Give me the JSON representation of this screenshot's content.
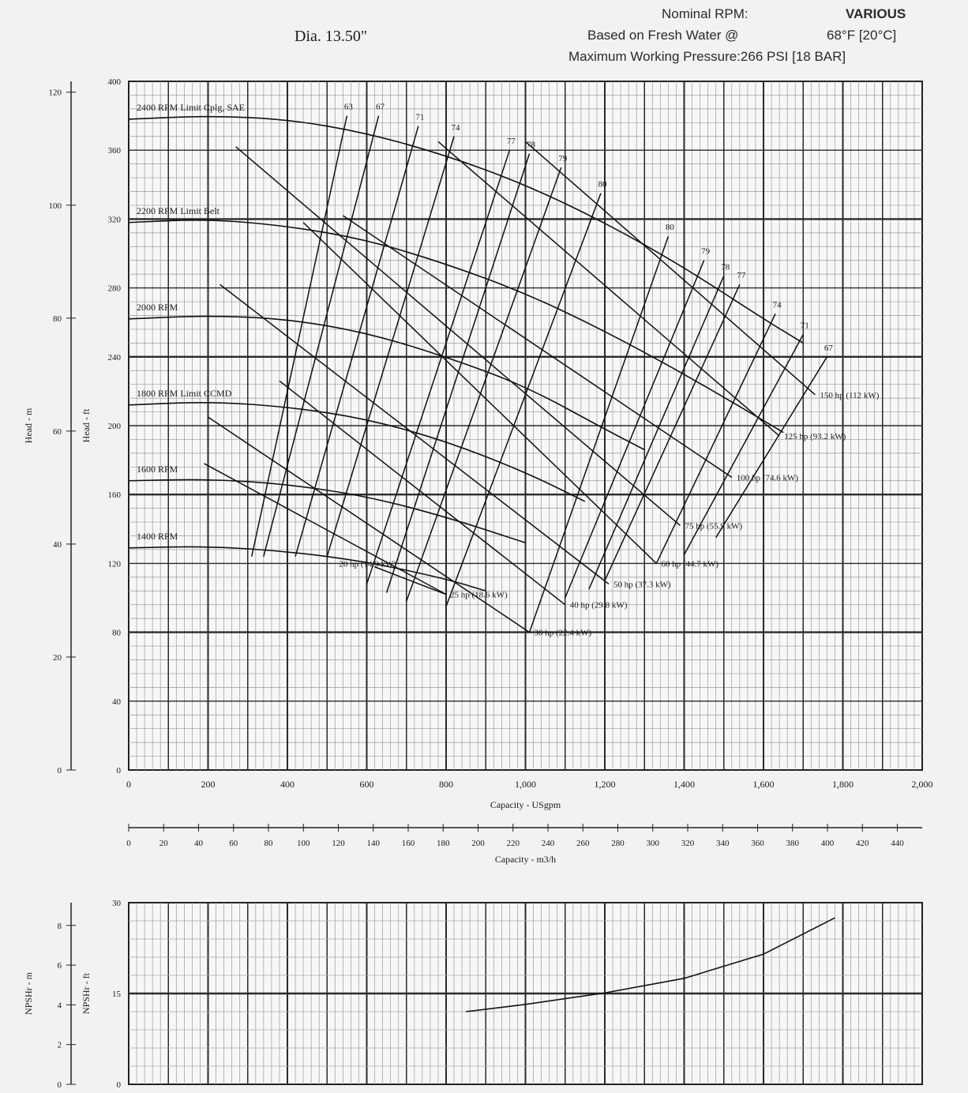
{
  "header": {
    "diameter": "Dia. 13.50\"",
    "nominal_rpm_label": "Nominal RPM:",
    "nominal_rpm_value": "VARIOUS",
    "fresh_water_label": "Based on Fresh Water @",
    "fresh_water_value": "68°F [20°C]",
    "max_pressure": "Maximum Working Pressure:266 PSI [18 BAR]"
  },
  "chart_data": [
    {
      "type": "line",
      "name": "pump-performance",
      "xlabel": "Capacity - USgpm",
      "x2label": "Capacity - m3/h",
      "ylabel": "Head - ft",
      "y2label": "Head - m",
      "xlim": [
        0,
        2000
      ],
      "ylim": [
        0,
        400
      ],
      "x_ticks": [
        "0",
        "200",
        "400",
        "600",
        "800",
        "1,000",
        "1,200",
        "1,400",
        "1,600",
        "1,800",
        "2,000"
      ],
      "x2_ticks": [
        "0",
        "20",
        "40",
        "60",
        "80",
        "100",
        "120",
        "140",
        "160",
        "180",
        "200",
        "220",
        "240",
        "260",
        "280",
        "300",
        "320",
        "340",
        "360",
        "380",
        "400",
        "420",
        "440"
      ],
      "y_ticks": [
        "0",
        "40",
        "80",
        "120",
        "160",
        "200",
        "240",
        "280",
        "320",
        "360",
        "400"
      ],
      "y2_ticks": [
        "0",
        "20",
        "40",
        "60",
        "80",
        "100",
        "120"
      ],
      "grid": true,
      "series": [
        {
          "name": "2400 RPM Limit Cplg, SAE",
          "x": [
            0,
            200,
            400,
            600,
            800,
            1000,
            1200,
            1400,
            1600,
            1700
          ],
          "y": [
            378,
            380,
            378,
            370,
            357,
            340,
            318,
            292,
            262,
            248
          ]
        },
        {
          "name": "2200 RPM Limit Belt",
          "x": [
            0,
            200,
            400,
            600,
            800,
            1000,
            1200,
            1400,
            1600,
            1650
          ],
          "y": [
            318,
            320,
            316,
            308,
            294,
            277,
            255,
            230,
            203,
            196
          ]
        },
        {
          "name": "2000 RPM",
          "x": [
            0,
            200,
            400,
            600,
            800,
            1000,
            1200,
            1300
          ],
          "y": [
            262,
            264,
            262,
            254,
            240,
            223,
            198,
            186
          ]
        },
        {
          "name": "1800 RPM Limit CCMD",
          "x": [
            0,
            200,
            400,
            600,
            800,
            1000,
            1150
          ],
          "y": [
            212,
            214,
            211,
            204,
            191,
            173,
            156
          ]
        },
        {
          "name": "1600 RPM",
          "x": [
            0,
            200,
            400,
            600,
            800,
            1000
          ],
          "y": [
            168,
            169,
            166,
            159,
            147,
            132
          ]
        },
        {
          "name": "1400 RPM",
          "x": [
            0,
            200,
            400,
            600,
            800,
            900
          ],
          "y": [
            129,
            130,
            127,
            121,
            111,
            104
          ]
        }
      ],
      "efficiency_lines": [
        {
          "label": "63",
          "x": [
            310,
            550
          ],
          "y": [
            124,
            380
          ]
        },
        {
          "label": "67",
          "x": [
            340,
            630
          ],
          "y": [
            124,
            380
          ]
        },
        {
          "label": "71",
          "x": [
            420,
            730
          ],
          "y": [
            124,
            374
          ]
        },
        {
          "label": "74",
          "x": [
            500,
            820
          ],
          "y": [
            124,
            368
          ]
        },
        {
          "label": "77",
          "x": [
            600,
            960
          ],
          "y": [
            108,
            360
          ]
        },
        {
          "label": "78",
          "x": [
            650,
            1010
          ],
          "y": [
            103,
            358
          ]
        },
        {
          "label": "79",
          "x": [
            700,
            1090
          ],
          "y": [
            98,
            350
          ]
        },
        {
          "label": "80",
          "x": [
            800,
            1190
          ],
          "y": [
            95,
            335
          ]
        },
        {
          "label": "80",
          "x": [
            1010,
            1360
          ],
          "y": [
            80,
            310
          ]
        },
        {
          "label": "79",
          "x": [
            1100,
            1450
          ],
          "y": [
            100,
            296
          ]
        },
        {
          "label": "78",
          "x": [
            1160,
            1500
          ],
          "y": [
            105,
            287
          ]
        },
        {
          "label": "77",
          "x": [
            1200,
            1540
          ],
          "y": [
            110,
            282
          ]
        },
        {
          "label": "74",
          "x": [
            1330,
            1630
          ],
          "y": [
            120,
            265
          ]
        },
        {
          "label": "71",
          "x": [
            1400,
            1700
          ],
          "y": [
            125,
            253
          ]
        },
        {
          "label": "67",
          "x": [
            1480,
            1760
          ],
          "y": [
            135,
            240
          ]
        }
      ],
      "power_lines": [
        {
          "label": "150 hp (112 kW)",
          "x": [
            1000,
            1730
          ],
          "y": [
            365,
            218
          ]
        },
        {
          "label": "125 hp (93.2 kW)",
          "x": [
            780,
            1640
          ],
          "y": [
            365,
            194
          ]
        },
        {
          "label": "100 hp (74.6 kW)",
          "x": [
            540,
            1520
          ],
          "y": [
            322,
            170
          ]
        },
        {
          "label": "75 hp (55.9 kW)",
          "x": [
            270,
            1390
          ],
          "y": [
            362,
            142
          ]
        },
        {
          "label": "60 hp (44.7 kW)",
          "x": [
            440,
            1330
          ],
          "y": [
            318,
            120
          ]
        },
        {
          "label": "50 hp (37.3 kW)",
          "x": [
            230,
            1210
          ],
          "y": [
            282,
            108
          ]
        },
        {
          "label": "40 hp (29.8 kW)",
          "x": [
            380,
            1100
          ],
          "y": [
            226,
            96
          ]
        },
        {
          "label": "30 hp (22.4 kW)",
          "x": [
            200,
            1010
          ],
          "y": [
            205,
            80
          ]
        },
        {
          "label": "25 hp (18.6 kW)",
          "x": [
            190,
            800
          ],
          "y": [
            178,
            102
          ]
        },
        {
          "label": "20 hp (14.9 kW)",
          "x": [
            620,
            800
          ],
          "y": [
            118,
            102
          ]
        }
      ],
      "labels_low": [
        {
          "text": "20 hp (14.9 kW)",
          "x": 530,
          "y": 120
        },
        {
          "text": "25 hp (18.6 kW)",
          "x": 810,
          "y": 102
        }
      ]
    },
    {
      "type": "line",
      "name": "npshr",
      "ylabel": "NPSHr - ft",
      "y2label": "NPSHr - m",
      "xlim": [
        0,
        2000
      ],
      "ylim": [
        0,
        30
      ],
      "y_ticks": [
        "0",
        "15",
        "30"
      ],
      "y2_ticks": [
        "0",
        "2",
        "4",
        "6",
        "8"
      ],
      "grid": true,
      "series": [
        {
          "x": [
            850,
            1000,
            1200,
            1400,
            1600,
            1780
          ],
          "y": [
            12,
            13.2,
            15.1,
            17.5,
            21.5,
            27.5
          ]
        }
      ]
    }
  ]
}
